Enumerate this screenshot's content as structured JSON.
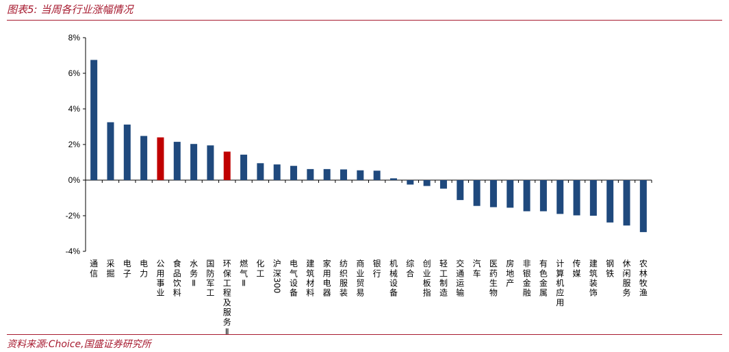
{
  "header": {
    "title": "图表5:  当周各行业涨幅情况"
  },
  "footer": {
    "source": "资料来源:Choice,国盛证券研究所"
  },
  "colors": {
    "bar_default": "#1f497d",
    "bar_highlight": "#c00000",
    "axis": "#000000",
    "rule": "#a6192e"
  },
  "chart_data": {
    "type": "bar",
    "title": "",
    "xlabel": "",
    "ylabel": "",
    "ylim": [
      -4,
      8
    ],
    "yticks": [
      -4,
      -2,
      0,
      2,
      4,
      6,
      8
    ],
    "ytick_labels": [
      "-4%",
      "-2%",
      "0%",
      "2%",
      "4%",
      "6%",
      "8%"
    ],
    "grid": false,
    "legend": "none",
    "categories": [
      "通信",
      "采掘",
      "电子",
      "电力",
      "公用事业",
      "食品饮料",
      "水务Ⅱ",
      "国防军工",
      "环保工程及服务Ⅱ",
      "燃气Ⅱ",
      "化工",
      "沪深300",
      "电气设备",
      "建筑材料",
      "家用电器",
      "纺织服装",
      "商业贸易",
      "银行",
      "机械设备",
      "综合",
      "创业板指",
      "轻工制造",
      "交通运输",
      "汽车",
      "医药生物",
      "房地产",
      "非银金融",
      "有色金属",
      "计算机应用",
      "传媒",
      "建筑装饰",
      "钢铁",
      "休闲服务",
      "农林牧渔"
    ],
    "values": [
      6.75,
      3.25,
      3.12,
      2.48,
      2.4,
      2.15,
      2.03,
      1.95,
      1.6,
      1.43,
      0.95,
      0.88,
      0.8,
      0.62,
      0.62,
      0.6,
      0.55,
      0.53,
      0.1,
      -0.25,
      -0.33,
      -0.48,
      -1.12,
      -1.45,
      -1.52,
      -1.55,
      -1.75,
      -1.75,
      -1.9,
      -1.98,
      -2.0,
      -2.38,
      -2.55,
      -2.92
    ],
    "highlight": [
      "公用事业",
      "环保工程及服务Ⅱ"
    ]
  }
}
